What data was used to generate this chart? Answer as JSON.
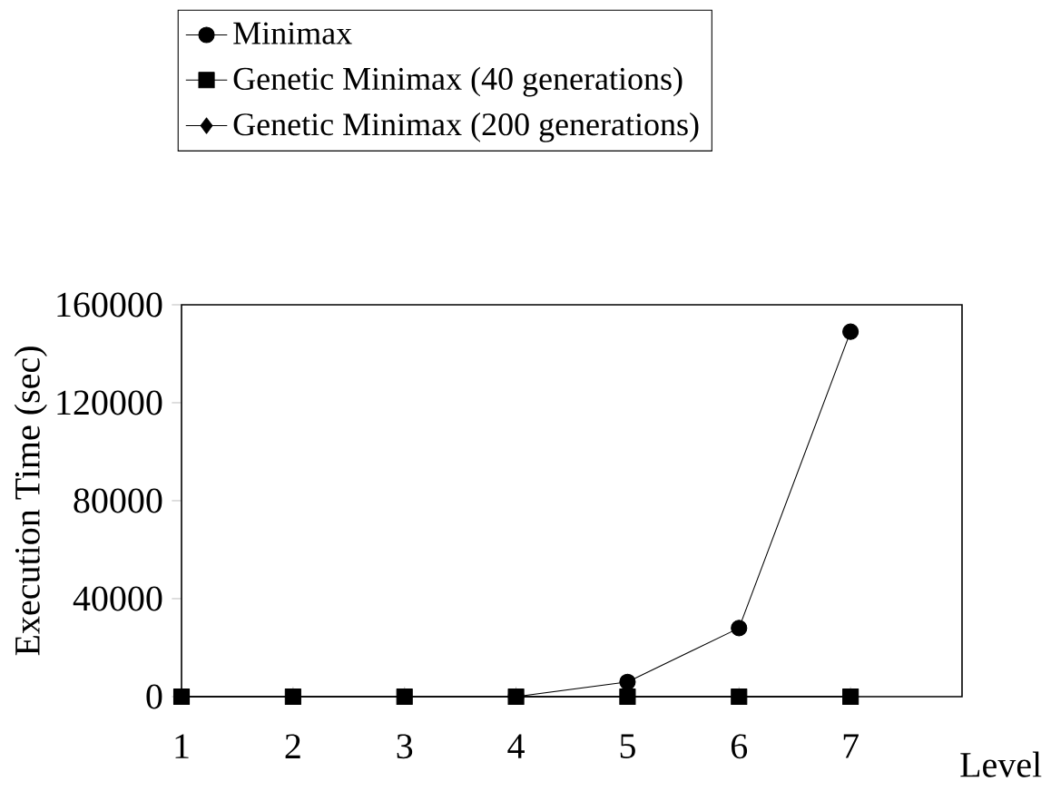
{
  "chart_data": {
    "type": "line",
    "xlabel": "Level",
    "ylabel": "Execution Time (sec)",
    "x": [
      1,
      2,
      3,
      4,
      5,
      6,
      7
    ],
    "series": [
      {
        "name": "Minimax",
        "color": "#000000",
        "marker": "circle",
        "values": [
          null,
          null,
          null,
          0,
          6000,
          28000,
          149000
        ]
      },
      {
        "name": "Genetic  Minimax (40 generations)",
        "color": "#000000",
        "marker": "square",
        "values": [
          0,
          0,
          0,
          0,
          0,
          0,
          0
        ]
      },
      {
        "name": "Genetic  Minimax (200 generations)",
        "color": "#000000",
        "marker": "diamond",
        "values": [
          0,
          0,
          0,
          0,
          0,
          0,
          0
        ]
      }
    ],
    "xlim": [
      1,
      8
    ],
    "xticks": [
      1,
      2,
      3,
      4,
      5,
      6,
      7
    ],
    "ylim": [
      0,
      160000
    ],
    "yticks": [
      0,
      40000,
      80000,
      120000,
      160000
    ],
    "grid": false,
    "legend": "top",
    "line_style": "solid"
  }
}
